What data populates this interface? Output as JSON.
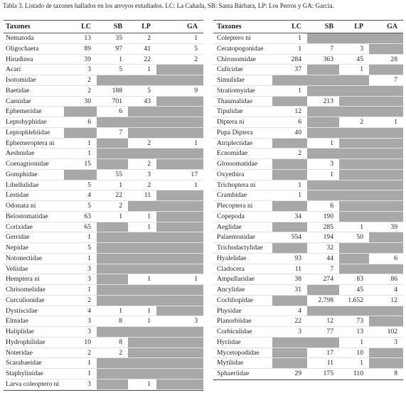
{
  "caption": "Tabla 3. Listado de taxones hallados en los arroyos estudiados. LC: La Cañada, SB: Santa Bárbara, LP: Los Perros y GA: Garcia.",
  "tables": [
    {
      "header": [
        "Taxones",
        "LC",
        "SB",
        "LP",
        "GA"
      ],
      "rows": [
        [
          "Nematoda",
          13,
          35,
          2,
          1
        ],
        [
          "Oligochaeta",
          89,
          97,
          41,
          5
        ],
        [
          "Hirudinea",
          39,
          1,
          22,
          2
        ],
        [
          "Acari",
          3,
          5,
          1,
          null
        ],
        [
          "Isotomidae",
          2,
          null,
          null,
          null
        ],
        [
          "Baetidae",
          2,
          188,
          5,
          9
        ],
        [
          "Caenidae",
          30,
          701,
          43,
          null
        ],
        [
          "Ephemeridae",
          null,
          6,
          null,
          null
        ],
        [
          "Leptohyphidae",
          6,
          null,
          null,
          null
        ],
        [
          "Leptophlebiidae",
          null,
          7,
          null,
          null
        ],
        [
          "Ephemeroptera ni",
          1,
          null,
          2,
          1
        ],
        [
          "Aeshnidae",
          1,
          null,
          null,
          null
        ],
        [
          "Coenagrionidae",
          15,
          null,
          2,
          null
        ],
        [
          "Gomphidae",
          null,
          55,
          3,
          17
        ],
        [
          "Libellulidae",
          5,
          1,
          2,
          1
        ],
        [
          "Lestidae",
          4,
          22,
          11,
          null
        ],
        [
          "Odonata ni",
          5,
          2,
          null,
          null
        ],
        [
          "Belostomatidae",
          63,
          1,
          1,
          null
        ],
        [
          "Corixidae",
          65,
          null,
          1,
          null
        ],
        [
          "Gerridae",
          1,
          null,
          null,
          null
        ],
        [
          "Nepidae",
          5,
          null,
          null,
          null
        ],
        [
          "Notonectidae",
          1,
          null,
          null,
          null
        ],
        [
          "Veliidae",
          3,
          null,
          null,
          null
        ],
        [
          "Hemptera ni",
          3,
          null,
          1,
          1
        ],
        [
          "Chrisomelidae",
          1,
          null,
          null,
          null
        ],
        [
          "Curculionidae",
          2,
          null,
          null,
          null
        ],
        [
          "Dystiscidae",
          4,
          1,
          1,
          null
        ],
        [
          "Elmidae",
          3,
          8,
          1,
          3
        ],
        [
          "Haliplidae",
          3,
          null,
          null,
          null
        ],
        [
          "Hydrophilidae",
          10,
          8,
          null,
          null
        ],
        [
          "Noteridae",
          2,
          2,
          null,
          null
        ],
        [
          "Scarabaeidae",
          1,
          null,
          null,
          null
        ],
        [
          "Staphylinidae",
          1,
          null,
          null,
          null
        ],
        [
          "Larva coleoptero ni",
          3,
          null,
          1,
          null
        ]
      ]
    },
    {
      "header": [
        "Taxones",
        "LC",
        "SB",
        "LP",
        "GA"
      ],
      "rows": [
        [
          "Coleptero ni",
          1,
          null,
          null,
          null
        ],
        [
          "Ceratopogonidae",
          1,
          7,
          3,
          null
        ],
        [
          "Chironomidae",
          284,
          363,
          45,
          28
        ],
        [
          "Culicidae",
          37,
          null,
          1,
          null
        ],
        [
          "Simulidae",
          null,
          null,
          null,
          7
        ],
        [
          "Stratiomyidae",
          1,
          null,
          null,
          null
        ],
        [
          "Thaumalidae",
          null,
          213,
          null,
          null
        ],
        [
          "Tipulidae",
          12,
          null,
          null,
          null
        ],
        [
          "Diptera ni",
          6,
          null,
          2,
          1
        ],
        [
          "Pupa Diptera",
          40,
          null,
          null,
          null
        ],
        [
          "Atriplectidae",
          null,
          1,
          null,
          null
        ],
        [
          "Ecnomidae",
          2,
          null,
          null,
          null
        ],
        [
          "Glossomatidae",
          null,
          3,
          null,
          null
        ],
        [
          "Oxyethira",
          null,
          1,
          null,
          null
        ],
        [
          "Trichoptera ni",
          1,
          null,
          null,
          null
        ],
        [
          "Crambidae",
          1,
          null,
          null,
          null
        ],
        [
          "Plecoptera ni",
          null,
          6,
          null,
          null
        ],
        [
          "Copepoda",
          34,
          190,
          null,
          null
        ],
        [
          "Aeglidae",
          null,
          285,
          1,
          39
        ],
        [
          "Palaemonidae",
          554,
          194,
          50,
          null
        ],
        [
          "Trichodactylidae",
          null,
          32,
          null,
          null
        ],
        [
          "Hyalelidae",
          93,
          44,
          null,
          6
        ],
        [
          "Cladocera",
          11,
          7,
          null,
          null
        ],
        [
          "Ampullaridae",
          38,
          274,
          83,
          86
        ],
        [
          "Ancylidae",
          31,
          null,
          45,
          4
        ],
        [
          "Cochliopidae",
          null,
          "2.798",
          "1.652",
          12
        ],
        [
          "Physidae",
          4,
          null,
          null,
          null
        ],
        [
          "Planorbiidae",
          22,
          12,
          73,
          null
        ],
        [
          "Corbiculidae",
          3,
          77,
          13,
          102
        ],
        [
          "Hyriidae",
          null,
          null,
          1,
          3
        ],
        [
          "Mycetopodidae",
          null,
          17,
          10,
          null
        ],
        [
          "Mytilidae",
          null,
          11,
          1,
          null
        ],
        [
          "Sphaeriidae",
          29,
          175,
          110,
          8
        ]
      ]
    }
  ]
}
